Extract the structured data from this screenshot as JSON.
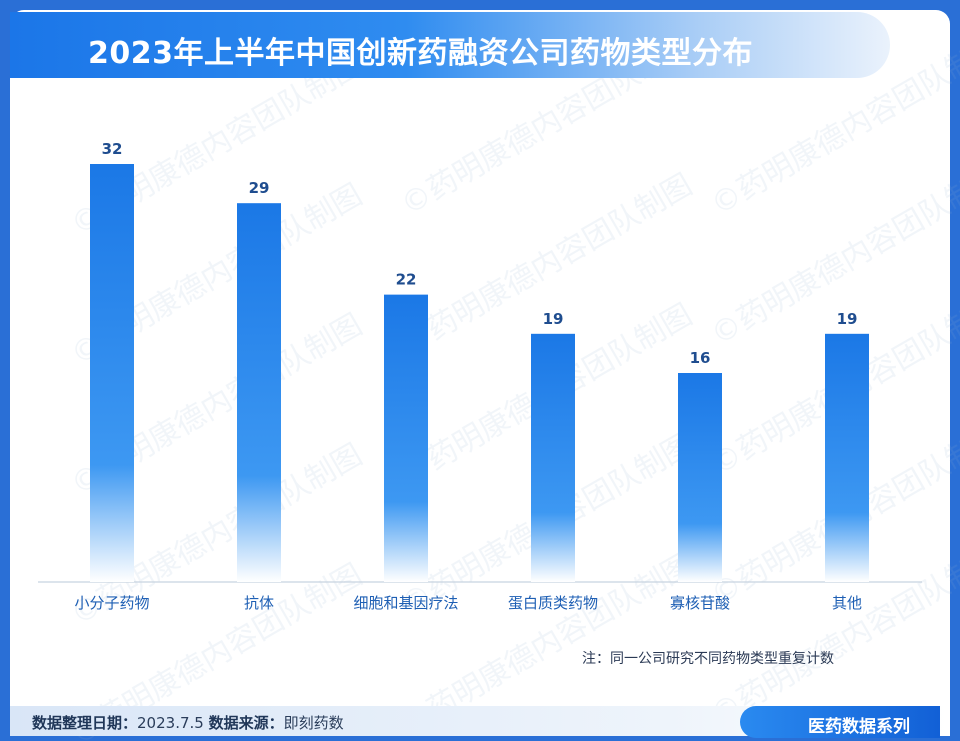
{
  "title": "2023年上半年中国创新药融资公司药物类型分布",
  "watermark": "©药明康德内容团队制图",
  "note": "注：同一公司研究不同药物类型重复计数",
  "footer": {
    "date_label": "数据整理日期：",
    "date_value": "2023.7.5",
    "source_label": "数据来源：",
    "source_value": "即刻药数"
  },
  "series_tag": "医药数据系列",
  "colors": {
    "background": "#2a6fd6",
    "bar_top": "#1b78e6",
    "bar_bottom": "#ffffff",
    "value_label": "#1f4d8f",
    "category_label": "#1e5fb4",
    "axis": "#c8d3e0"
  },
  "chart_data": {
    "type": "bar",
    "title": "2023年上半年中国创新药融资公司药物类型分布",
    "categories": [
      "小分子药物",
      "抗体",
      "细胞和基因疗法",
      "蛋白质类药物",
      "寡核苷酸",
      "其他"
    ],
    "values": [
      32,
      29,
      22,
      19,
      16,
      19
    ],
    "xlabel": "",
    "ylabel": "",
    "ylim": [
      0,
      32
    ],
    "grid": false,
    "legend": "none"
  }
}
